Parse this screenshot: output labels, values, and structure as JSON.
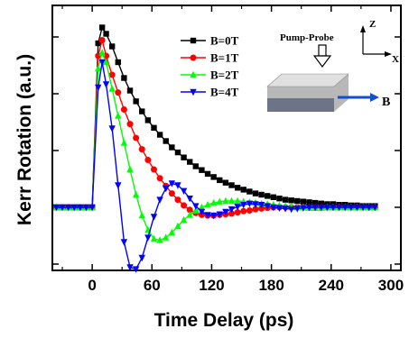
{
  "chart_data": {
    "type": "line",
    "xlabel": "Time Delay (ps)",
    "ylabel": "Kerr Rotation (a.u.)",
    "xlim": [
      -40,
      310
    ],
    "ylim": [
      -1.0,
      3.2
    ],
    "x_ticks": [
      0,
      60,
      120,
      180,
      240,
      300
    ],
    "x_tick_labels": [
      "0",
      "60",
      "120",
      "180",
      "240",
      "300"
    ],
    "y_ticks": [
      -0.9,
      0,
      0.9,
      1.8,
      2.7
    ],
    "legend_position": "top-right",
    "grid": false,
    "series": [
      {
        "name": "B=0T",
        "color": "#000000",
        "marker": "square",
        "x": [
          -36,
          -30,
          -24,
          -18,
          -12,
          -6,
          0,
          6,
          10,
          14,
          20,
          26,
          32,
          38,
          44,
          50,
          56,
          62,
          68,
          74,
          80,
          86,
          92,
          98,
          104,
          110,
          116,
          122,
          128,
          134,
          140,
          146,
          152,
          158,
          164,
          170,
          176,
          182,
          188,
          194,
          200,
          206,
          212,
          218,
          224,
          230,
          236,
          242,
          248,
          254,
          260,
          266,
          272,
          278,
          284
        ],
        "y": [
          0,
          0,
          0,
          0,
          0,
          0,
          0,
          2.6,
          2.85,
          2.75,
          2.55,
          2.3,
          2.05,
          1.85,
          1.68,
          1.52,
          1.38,
          1.26,
          1.15,
          1.05,
          0.95,
          0.87,
          0.79,
          0.72,
          0.65,
          0.59,
          0.53,
          0.48,
          0.43,
          0.39,
          0.35,
          0.31,
          0.28,
          0.25,
          0.22,
          0.2,
          0.18,
          0.16,
          0.14,
          0.12,
          0.11,
          0.1,
          0.09,
          0.08,
          0.07,
          0.06,
          0.05,
          0.05,
          0.04,
          0.04,
          0.03,
          0.03,
          0.02,
          0.02,
          0.02
        ]
      },
      {
        "name": "B=1T",
        "color": "#ff0000",
        "marker": "circle",
        "x": [
          -36,
          -30,
          -24,
          -18,
          -12,
          -6,
          0,
          6,
          10,
          14,
          20,
          26,
          32,
          38,
          44,
          50,
          56,
          62,
          68,
          74,
          80,
          86,
          92,
          98,
          104,
          110,
          116,
          122,
          128,
          134,
          140,
          146,
          152,
          158,
          164,
          170,
          176,
          182,
          188,
          194,
          200,
          206,
          212,
          218,
          224,
          230,
          236,
          242,
          248,
          254,
          260,
          266,
          272,
          278,
          284
        ],
        "y": [
          0,
          0,
          0,
          0,
          0,
          0,
          0,
          2.4,
          2.65,
          2.4,
          2.1,
          1.82,
          1.55,
          1.32,
          1.1,
          0.92,
          0.75,
          0.6,
          0.46,
          0.34,
          0.22,
          0.12,
          0.03,
          -0.04,
          -0.09,
          -0.12,
          -0.13,
          -0.13,
          -0.12,
          -0.11,
          -0.1,
          -0.08,
          -0.06,
          -0.05,
          -0.03,
          -0.02,
          -0.01,
          0,
          0,
          0,
          0,
          0,
          0,
          0,
          0,
          0,
          0,
          0,
          0,
          0,
          0,
          0,
          0,
          0,
          0
        ]
      },
      {
        "name": "B=2T",
        "color": "#00ff00",
        "marker": "triangle-up",
        "x": [
          -36,
          -30,
          -24,
          -18,
          -12,
          -6,
          0,
          6,
          10,
          14,
          20,
          26,
          32,
          38,
          44,
          50,
          56,
          62,
          68,
          74,
          80,
          86,
          92,
          98,
          104,
          110,
          116,
          122,
          128,
          134,
          140,
          146,
          152,
          158,
          164,
          170,
          176,
          182,
          188,
          194,
          200,
          206,
          212,
          218,
          224,
          230,
          236,
          242,
          248,
          254,
          260,
          266,
          272,
          278,
          284
        ],
        "y": [
          0,
          0,
          0,
          0,
          0,
          0,
          0,
          2.2,
          2.45,
          2.3,
          1.88,
          1.45,
          1.02,
          0.6,
          0.2,
          -0.13,
          -0.36,
          -0.5,
          -0.52,
          -0.48,
          -0.4,
          -0.3,
          -0.2,
          -0.12,
          -0.05,
          0,
          0.04,
          0.07,
          0.09,
          0.1,
          0.1,
          0.1,
          0.09,
          0.08,
          0.07,
          0.06,
          0.05,
          0.04,
          0.03,
          0.02,
          0.01,
          0,
          0,
          -0.01,
          -0.01,
          -0.01,
          0,
          0,
          0,
          0,
          0,
          0,
          0,
          0,
          0
        ]
      },
      {
        "name": "B=4T",
        "color": "#0000ff",
        "marker": "triangle-down",
        "x": [
          -36,
          -30,
          -24,
          -18,
          -12,
          -6,
          0,
          6,
          10,
          14,
          20,
          26,
          32,
          38,
          44,
          50,
          56,
          62,
          68,
          74,
          80,
          86,
          92,
          98,
          104,
          110,
          116,
          122,
          128,
          134,
          140,
          146,
          152,
          158,
          164,
          170,
          176,
          182,
          188,
          194,
          200,
          206,
          212,
          218,
          224,
          230,
          236,
          242,
          248,
          254,
          260,
          266,
          272,
          278,
          284
        ],
        "y": [
          0,
          0,
          0,
          0,
          0,
          0,
          0,
          1.9,
          2.3,
          1.95,
          1.25,
          0.35,
          -0.55,
          -0.95,
          -0.98,
          -0.8,
          -0.48,
          -0.15,
          0.12,
          0.3,
          0.38,
          0.35,
          0.26,
          0.14,
          0.02,
          -0.07,
          -0.12,
          -0.13,
          -0.11,
          -0.07,
          -0.03,
          0.01,
          0.04,
          0.06,
          0.05,
          0.04,
          0.02,
          0,
          -0.01,
          -0.02,
          -0.03,
          -0.02,
          -0.01,
          0,
          0,
          0,
          0,
          0,
          0,
          0,
          0,
          0,
          0,
          0,
          0
        ]
      }
    ],
    "inset": {
      "pump_probe_label": "Pump-Probe",
      "z_label": "Z",
      "x_label": "X",
      "b_label": "B",
      "top_color": "#e0e0e0",
      "middle_color": "#b8b8b8",
      "bottom_color": "#6d7488",
      "arrow_color": "#1650c8"
    }
  }
}
